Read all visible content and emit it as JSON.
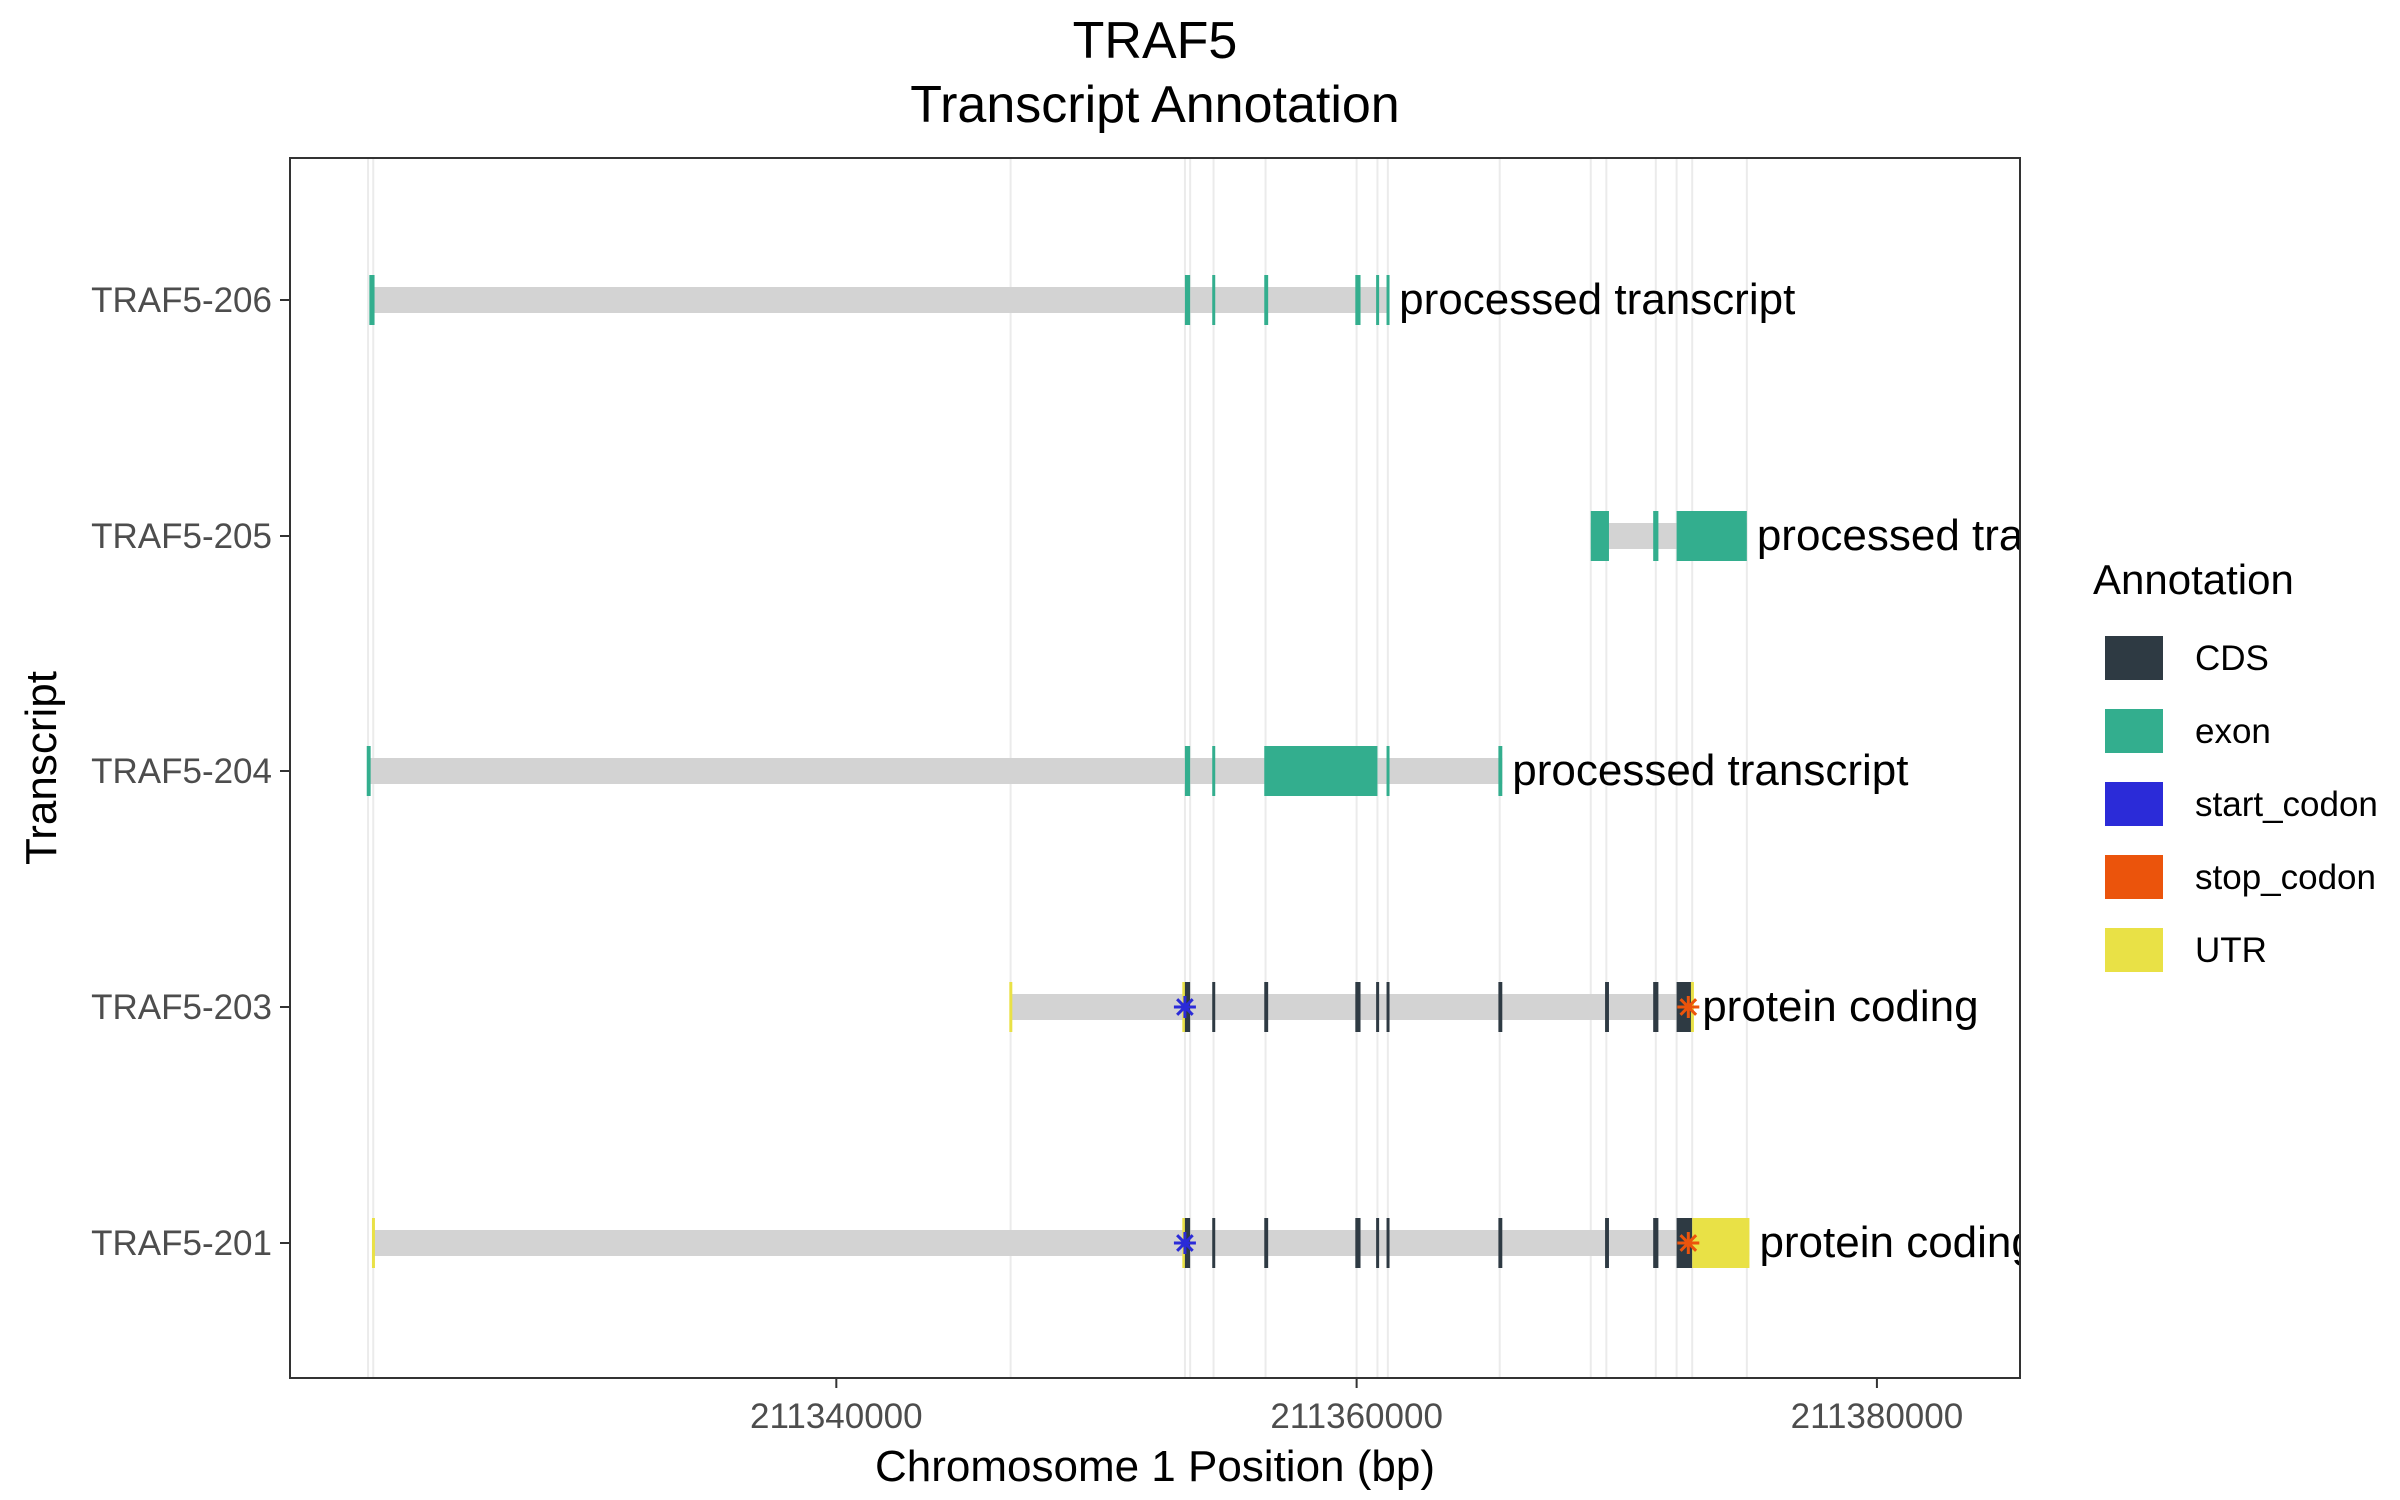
{
  "chart_data": {
    "type": "gene-track",
    "title": "TRAF5",
    "subtitle": "Transcript Annotation",
    "xlabel": "Chromosome 1 Position (bp)",
    "ylabel": "Transcript",
    "xlim": [
      211319000,
      211385500
    ],
    "xticks": [
      211340000,
      211360000,
      211380000
    ],
    "xtick_labels": [
      "211340000",
      "211360000",
      "211380000"
    ],
    "grid": "vertical lines at feature boundaries",
    "legend": {
      "title": "Annotation",
      "position": "right",
      "items": [
        {
          "label": "CDS",
          "color": "#2E3A43"
        },
        {
          "label": "exon",
          "color": "#33AE8E"
        },
        {
          "label": "start_codon",
          "color": "#2B2BD8"
        },
        {
          "label": "stop_codon",
          "color": "#EB540C"
        },
        {
          "label": "UTR",
          "color": "#E9E146"
        }
      ]
    },
    "intron_color": "#D3D3D3",
    "feature_boundaries": [
      211322000,
      211322200,
      211346700,
      211353400,
      211353600,
      211354500,
      211356500,
      211360000,
      211360800,
      211361200,
      211365500,
      211369000,
      211369600,
      211371500,
      211372300,
      211372900,
      211375000
    ],
    "transcripts": [
      {
        "name": "TRAF5-206",
        "biotype": "processed transcript",
        "start": 211322150,
        "end": 211361250,
        "features": [
          {
            "type": "exon",
            "start": 211322050,
            "end": 211322250
          },
          {
            "type": "exon",
            "start": 211353400,
            "end": 211353600
          },
          {
            "type": "exon",
            "start": 211354450,
            "end": 211354550
          },
          {
            "type": "exon",
            "start": 211356450,
            "end": 211356600
          },
          {
            "type": "exon",
            "start": 211359950,
            "end": 211360150
          },
          {
            "type": "exon",
            "start": 211360750,
            "end": 211360850
          },
          {
            "type": "exon",
            "start": 211361150,
            "end": 211361250
          }
        ]
      },
      {
        "name": "TRAF5-205",
        "biotype": "processed transcript",
        "start": 211369000,
        "end": 211375000,
        "features": [
          {
            "type": "exon",
            "start": 211369000,
            "end": 211369700
          },
          {
            "type": "exon",
            "start": 211371400,
            "end": 211371600
          },
          {
            "type": "exon",
            "start": 211372300,
            "end": 211375000
          }
        ]
      },
      {
        "name": "TRAF5-204",
        "biotype": "processed transcript",
        "start": 211322000,
        "end": 211365600,
        "features": [
          {
            "type": "exon",
            "start": 211321950,
            "end": 211322100
          },
          {
            "type": "exon",
            "start": 211353400,
            "end": 211353600
          },
          {
            "type": "exon",
            "start": 211354450,
            "end": 211354550
          },
          {
            "type": "exon",
            "start": 211356450,
            "end": 211360800
          },
          {
            "type": "exon",
            "start": 211361150,
            "end": 211361250
          },
          {
            "type": "exon",
            "start": 211365450,
            "end": 211365600
          }
        ]
      },
      {
        "name": "TRAF5-203",
        "biotype": "protein coding",
        "start": 211346700,
        "end": 211372900,
        "features": [
          {
            "type": "UTR",
            "start": 211346650,
            "end": 211346750
          },
          {
            "type": "UTR",
            "start": 211353300,
            "end": 211353400
          },
          {
            "type": "CDS",
            "start": 211353400,
            "end": 211353600
          },
          {
            "type": "CDS",
            "start": 211354450,
            "end": 211354550
          },
          {
            "type": "CDS",
            "start": 211356450,
            "end": 211356600
          },
          {
            "type": "CDS",
            "start": 211359950,
            "end": 211360150
          },
          {
            "type": "CDS",
            "start": 211360750,
            "end": 211360850
          },
          {
            "type": "CDS",
            "start": 211361150,
            "end": 211361250
          },
          {
            "type": "CDS",
            "start": 211365450,
            "end": 211365600
          },
          {
            "type": "CDS",
            "start": 211369550,
            "end": 211369700
          },
          {
            "type": "CDS",
            "start": 211371400,
            "end": 211371600
          },
          {
            "type": "CDS",
            "start": 211372300,
            "end": 211372900
          },
          {
            "type": "UTR",
            "start": 211372850,
            "end": 211372950
          }
        ],
        "start_codon": 211353400,
        "stop_codon": 211372750
      },
      {
        "name": "TRAF5-201",
        "biotype": "protein coding",
        "start": 211322200,
        "end": 211375100,
        "features": [
          {
            "type": "UTR",
            "start": 211322150,
            "end": 211322250
          },
          {
            "type": "UTR",
            "start": 211353300,
            "end": 211353400
          },
          {
            "type": "CDS",
            "start": 211353400,
            "end": 211353600
          },
          {
            "type": "CDS",
            "start": 211354450,
            "end": 211354550
          },
          {
            "type": "CDS",
            "start": 211356450,
            "end": 211356600
          },
          {
            "type": "CDS",
            "start": 211359950,
            "end": 211360150
          },
          {
            "type": "CDS",
            "start": 211360750,
            "end": 211360850
          },
          {
            "type": "CDS",
            "start": 211361150,
            "end": 211361250
          },
          {
            "type": "CDS",
            "start": 211365450,
            "end": 211365600
          },
          {
            "type": "CDS",
            "start": 211369550,
            "end": 211369700
          },
          {
            "type": "CDS",
            "start": 211371400,
            "end": 211371600
          },
          {
            "type": "CDS",
            "start": 211372300,
            "end": 211372900
          },
          {
            "type": "UTR",
            "start": 211372900,
            "end": 211375100
          }
        ],
        "start_codon": 211353400,
        "stop_codon": 211372750
      }
    ]
  }
}
